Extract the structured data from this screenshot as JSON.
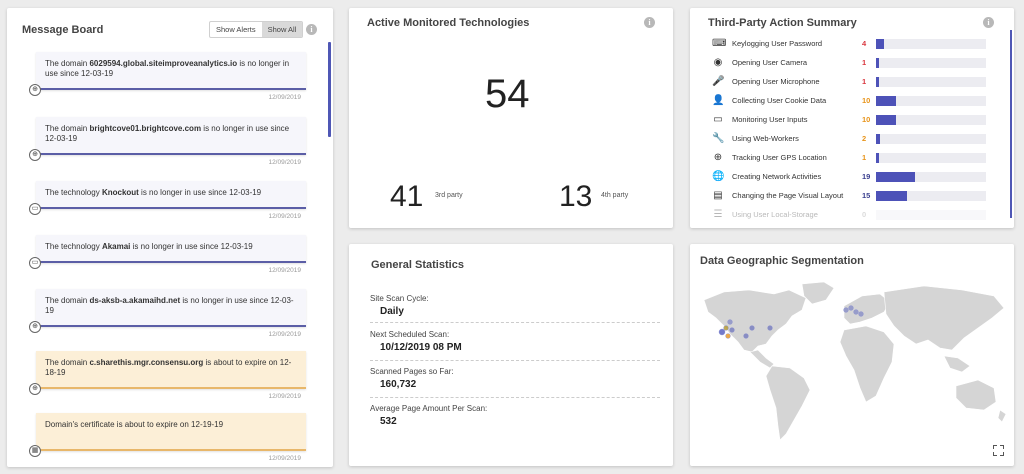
{
  "message_board": {
    "title": "Message Board",
    "show_alerts": "Show Alerts",
    "show_all": "Show All",
    "messages": [
      {
        "pre": "The domain ",
        "bold": "6029594.global.siteimproveanalytics.io",
        "post": " is no longer in use since 12-03-19",
        "date": "12/09/2019",
        "type": "info",
        "icon": "globe-icon"
      },
      {
        "pre": "The domain ",
        "bold": "brightcove01.brightcove.com",
        "post": " is no longer in use since 12-03-19",
        "date": "12/09/2019",
        "type": "info",
        "icon": "globe-icon"
      },
      {
        "pre": "The technology ",
        "bold": "Knockout",
        "post": " is no longer in use since 12-03-19",
        "date": "12/09/2019",
        "type": "info",
        "icon": "folder-icon"
      },
      {
        "pre": "The technology ",
        "bold": "Akamai",
        "post": " is no longer in use since 12-03-19",
        "date": "12/09/2019",
        "type": "info",
        "icon": "folder-icon"
      },
      {
        "pre": "The domain ",
        "bold": "ds-aksb-a.akamaihd.net",
        "post": " is no longer in use since 12-03-19",
        "date": "12/09/2019",
        "type": "info",
        "icon": "globe-icon"
      },
      {
        "pre": "The domain ",
        "bold": "c.sharethis.mgr.consensu.org",
        "post": " is about to expire on 12-18-19",
        "date": "12/09/2019",
        "type": "warn",
        "icon": "globe-icon"
      },
      {
        "pre": "Domain's ",
        "bold": "",
        "post": "certificate is about to expire on 12-19-19",
        "date": "12/09/2019",
        "type": "warn",
        "icon": "certificate-icon"
      }
    ]
  },
  "active_tech": {
    "title": "Active Monitored Technologies",
    "total": "54",
    "third_party": "41",
    "third_party_label": "3rd party",
    "fourth_party": "13",
    "fourth_party_label": "4th party"
  },
  "third_party_summary": {
    "title": "Third-Party Action Summary",
    "max": 54,
    "rows": [
      {
        "label": "Keylogging User Password",
        "count": 4,
        "color": "#d9363e",
        "icon": "keyboard-icon",
        "glyph": "⌨"
      },
      {
        "label": "Opening User Camera",
        "count": 1,
        "color": "#d9363e",
        "icon": "camera-icon",
        "glyph": "◉"
      },
      {
        "label": "Opening User Microphone",
        "count": 1,
        "color": "#d9363e",
        "icon": "microphone-icon",
        "glyph": "🎤"
      },
      {
        "label": "Collecting User Cookie Data",
        "count": 10,
        "color": "#e8941a",
        "icon": "user-icon",
        "glyph": "👤"
      },
      {
        "label": "Monitoring User Inputs",
        "count": 10,
        "color": "#e8941a",
        "icon": "input-icon",
        "glyph": "▭"
      },
      {
        "label": "Using Web-Workers",
        "count": 2,
        "color": "#e8941a",
        "icon": "wrench-icon",
        "glyph": "🔧"
      },
      {
        "label": "Tracking User GPS Location",
        "count": 1,
        "color": "#e8941a",
        "icon": "gps-icon",
        "glyph": "⊕"
      },
      {
        "label": "Creating Network Activities",
        "count": 19,
        "color": "#3a3f8f",
        "icon": "globe-icon",
        "glyph": "🌐"
      },
      {
        "label": "Changing the Page Visual Layout",
        "count": 15,
        "color": "#3a3f8f",
        "icon": "layout-icon",
        "glyph": "▤"
      },
      {
        "label": "Using User Local-Storage",
        "count": 0,
        "color": "#999999",
        "icon": "list-icon",
        "glyph": "☰"
      }
    ]
  },
  "general_stats": {
    "title": "General Statistics",
    "items": [
      {
        "label": "Site Scan Cycle:",
        "value": "Daily"
      },
      {
        "label": "Next Scheduled Scan:",
        "value": "10/12/2019 08 PM"
      },
      {
        "label": "Scanned Pages so Far:",
        "value": "160,732"
      },
      {
        "label": "Average Page Amount Per Scan:",
        "value": "532"
      }
    ]
  },
  "geo": {
    "title": "Data Geographic Segmentation"
  }
}
